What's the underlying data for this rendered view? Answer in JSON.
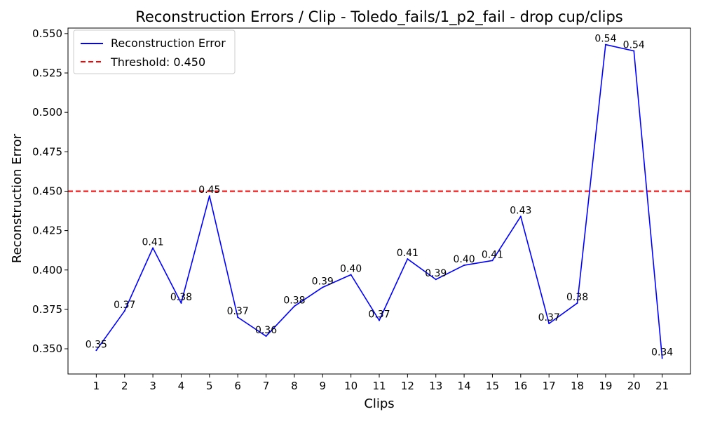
{
  "chart_data": {
    "type": "line",
    "title": "Reconstruction Errors / Clip - Toledo_fails/1_p2_fail - drop cup/clips",
    "xlabel": "Clips",
    "ylabel": "Reconstruction Error",
    "x": [
      1,
      2,
      3,
      4,
      5,
      6,
      7,
      8,
      9,
      10,
      11,
      12,
      13,
      14,
      15,
      16,
      17,
      18,
      19,
      20,
      21
    ],
    "xlim": [
      0.0,
      22.0
    ],
    "ylim": [
      0.334,
      0.5535
    ],
    "yticks": [
      0.35,
      0.375,
      0.4,
      0.425,
      0.45,
      0.475,
      0.5,
      0.525,
      0.55
    ],
    "ytick_labels": [
      "0.350",
      "0.375",
      "0.400",
      "0.425",
      "0.450",
      "0.475",
      "0.500",
      "0.525",
      "0.550"
    ],
    "series": [
      {
        "name": "Reconstruction Error",
        "color": "#0000ff",
        "values": [
          0.349,
          0.374,
          0.414,
          0.379,
          0.447,
          0.37,
          0.358,
          0.377,
          0.389,
          0.397,
          0.368,
          0.407,
          0.394,
          0.403,
          0.406,
          0.434,
          0.366,
          0.379,
          0.543,
          0.539,
          0.344
        ],
        "labels": [
          "0.35",
          "0.37",
          "0.41",
          "0.38",
          "0.45",
          "0.37",
          "0.36",
          "0.38",
          "0.39",
          "0.40",
          "0.37",
          "0.41",
          "0.39",
          "0.40",
          "0.41",
          "0.43",
          "0.37",
          "0.38",
          "0.54",
          "0.54",
          "0.34"
        ]
      }
    ],
    "threshold": {
      "name": "Threshold: 0.450",
      "value": 0.45,
      "color": "#ff0000",
      "style": "dashed"
    },
    "legend": "top-left",
    "grid": false
  }
}
